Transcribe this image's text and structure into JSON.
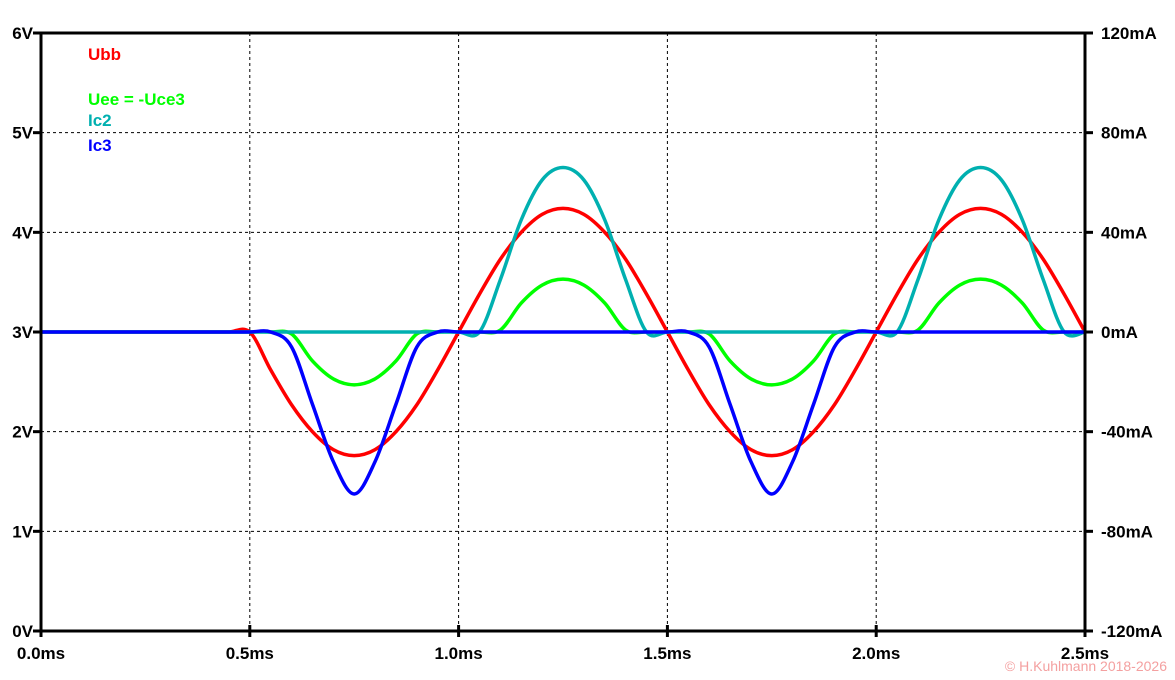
{
  "chart_data": {
    "type": "line",
    "title": "",
    "xlabel": "",
    "ylabel": "",
    "x_ticks": [
      "0.0ms",
      "0.5ms",
      "1.0ms",
      "1.5ms",
      "2.0ms",
      "2.5ms"
    ],
    "y_left_ticks": [
      "0V",
      "1V",
      "2V",
      "3V",
      "4V",
      "5V",
      "6V"
    ],
    "y_right_ticks": [
      "-120mA",
      "-80mA",
      "-40mA",
      "0mA",
      "40mA",
      "80mA",
      "120mA"
    ],
    "xlim": [
      0,
      2.5
    ],
    "ylim_left": [
      0,
      6
    ],
    "ylim_right": [
      -120,
      120
    ],
    "grid": true,
    "legend_position": "top-left",
    "x_step": 0.05,
    "series": [
      {
        "name": "Ubb",
        "axis": "left",
        "unit": "V",
        "color": "#ff0000",
        "values": [
          3,
          3,
          3,
          3,
          3,
          3,
          3,
          3,
          3,
          3,
          3,
          2.62,
          2.27,
          2.0,
          1.82,
          1.76,
          1.82,
          2.0,
          2.27,
          2.62,
          3,
          3.38,
          3.73,
          4.0,
          4.18,
          4.24,
          4.18,
          4.0,
          3.73,
          3.38,
          3,
          2.62,
          2.27,
          2.0,
          1.82,
          1.76,
          1.82,
          2.0,
          2.27,
          2.62,
          3,
          3.38,
          3.73,
          4.0,
          4.18,
          4.24,
          4.18,
          4.0,
          3.73,
          3.38,
          3
        ]
      },
      {
        "name": "Uee = -Uce3",
        "axis": "left",
        "unit": "V",
        "color": "#00ff00",
        "values": [
          3,
          3,
          3,
          3,
          3,
          3,
          3,
          3,
          3,
          3,
          3,
          3,
          2.98,
          2.71,
          2.53,
          2.47,
          2.53,
          2.71,
          2.98,
          3,
          3,
          3,
          3.02,
          3.29,
          3.47,
          3.53,
          3.47,
          3.29,
          3.02,
          3,
          3,
          3,
          2.98,
          2.71,
          2.53,
          2.47,
          2.53,
          2.71,
          2.98,
          3,
          3,
          3,
          3.02,
          3.29,
          3.47,
          3.53,
          3.47,
          3.29,
          3.02,
          3,
          3
        ]
      },
      {
        "name": "Ic2",
        "axis": "right",
        "unit": "mA",
        "color": "#00b0b0",
        "values": [
          0,
          0,
          0,
          0,
          0,
          0,
          0,
          0,
          0,
          0,
          0,
          0,
          0,
          0,
          0,
          0,
          0,
          0,
          0,
          0,
          0,
          0,
          21,
          45,
          61,
          66,
          61,
          45,
          21,
          0,
          0,
          0,
          0,
          0,
          0,
          0,
          0,
          0,
          0,
          0,
          0,
          0,
          21,
          45,
          61,
          66,
          61,
          45,
          21,
          0,
          0
        ]
      },
      {
        "name": "Ic3",
        "axis": "right",
        "unit": "mA",
        "color": "#0000ff",
        "values": [
          0,
          0,
          0,
          0,
          0,
          0,
          0,
          0,
          0,
          0,
          0,
          0,
          -6,
          -29,
          -52,
          -65,
          -52,
          -29,
          -6,
          0,
          0,
          0,
          0,
          0,
          0,
          0,
          0,
          0,
          0,
          0,
          0,
          0,
          -6,
          -29,
          -52,
          -65,
          -52,
          -29,
          -6,
          0,
          0,
          0,
          0,
          0,
          0,
          0,
          0,
          0,
          0,
          0,
          0
        ]
      }
    ]
  },
  "copyright": "© H.Kuhlmann 2018-2026"
}
